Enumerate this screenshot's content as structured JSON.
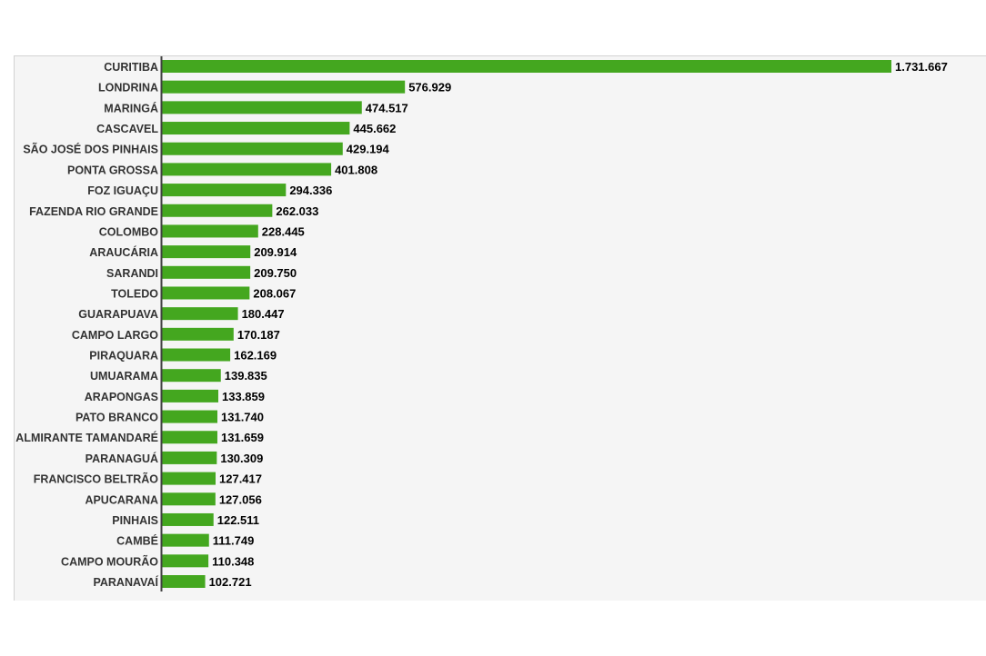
{
  "chart_data": {
    "type": "bar",
    "orientation": "horizontal",
    "title": "",
    "xlabel": "",
    "ylabel": "",
    "grid": false,
    "legend": "none",
    "colors": {
      "bar": "#44a71f",
      "category_label": "#333333",
      "value_label": "#000000",
      "axis_line": "#404040",
      "panel_background": "#f5f5f5"
    },
    "categories": [
      "CURITIBA",
      "LONDRINA",
      "MARINGÁ",
      "CASCAVEL",
      "SÃO JOSÉ DOS PINHAIS",
      "PONTA GROSSA",
      "FOZ IGUAÇU",
      "FAZENDA RIO GRANDE",
      "COLOMBO",
      "ARAUCÁRIA",
      "SARANDI",
      "TOLEDO",
      "GUARAPUAVA",
      "CAMPO LARGO",
      "PIRAQUARA",
      "UMUARAMA",
      "ARAPONGAS",
      "PATO BRANCO",
      "ALMIRANTE TAMANDARÉ",
      "PARANAGUÁ",
      "FRANCISCO BELTRÃO",
      "APUCARANA",
      "PINHAIS",
      "CAMBÉ",
      "CAMPO MOURÃO",
      "PARANAVAÍ"
    ],
    "values": [
      1731667,
      576929,
      474517,
      445662,
      429194,
      401808,
      294336,
      262033,
      228445,
      209914,
      209750,
      208067,
      180447,
      170187,
      162169,
      139835,
      133859,
      131740,
      131659,
      130309,
      127417,
      127056,
      122511,
      111749,
      110348,
      102721
    ],
    "value_labels": [
      "1.731.667",
      "576.929",
      "474.517",
      "445.662",
      "429.194",
      "401.808",
      "294.336",
      "262.033",
      "228.445",
      "209.914",
      "209.750",
      "208.067",
      "180.447",
      "170.187",
      "162.169",
      "139.835",
      "133.859",
      "131.740",
      "131.659",
      "130.309",
      "127.417",
      "127.056",
      "122.511",
      "111.749",
      "110.348",
      "102.721"
    ]
  }
}
